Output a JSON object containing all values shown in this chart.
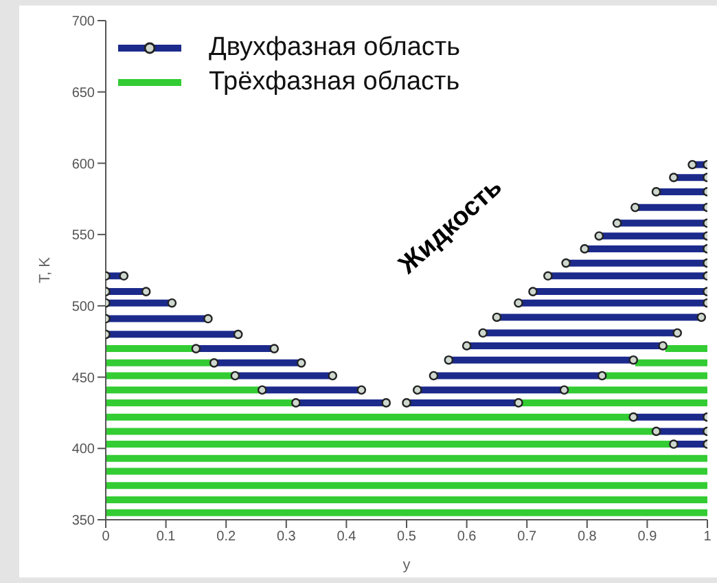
{
  "chart_data": {
    "type": "line",
    "xlabel": "y",
    "ylabel": "T, K",
    "xlim": [
      0,
      1
    ],
    "xticks": [
      0,
      0.1,
      0.2,
      0.3,
      0.4,
      0.5,
      0.6,
      0.7,
      0.8,
      0.9,
      1
    ],
    "ylim": [
      350,
      700
    ],
    "yticks": [
      350,
      400,
      450,
      500,
      550,
      600,
      650,
      700
    ],
    "legend": "top left",
    "line_style": "solid",
    "annotations": [
      "Жидкость"
    ],
    "series": [
      {
        "name": "Трёхфазная область",
        "color": "#33cc33",
        "x": [
          0,
          0.15
        ],
        "values": [
          470,
          470
        ]
      },
      {
        "color": "#33cc33",
        "x": [
          0.93,
          1
        ],
        "values": [
          470,
          470
        ]
      },
      {
        "color": "#33cc33",
        "x": [
          0,
          0.18
        ],
        "values": [
          460,
          460
        ]
      },
      {
        "color": "#33cc33",
        "x": [
          0.88,
          1
        ],
        "values": [
          460,
          460
        ]
      },
      {
        "color": "#33cc33",
        "x": [
          0,
          0.215
        ],
        "values": [
          451,
          451
        ]
      },
      {
        "color": "#33cc33",
        "x": [
          0.825,
          1
        ],
        "values": [
          451,
          451
        ]
      },
      {
        "color": "#33cc33",
        "x": [
          0,
          0.26
        ],
        "values": [
          441,
          441
        ]
      },
      {
        "color": "#33cc33",
        "x": [
          0.76,
          1
        ],
        "values": [
          441,
          441
        ]
      },
      {
        "color": "#33cc33",
        "x": [
          0,
          0.316
        ],
        "values": [
          432,
          432
        ]
      },
      {
        "color": "#33cc33",
        "x": [
          0.686,
          1
        ],
        "values": [
          432,
          432
        ]
      },
      {
        "color": "#33cc33",
        "x": [
          0,
          0.877
        ],
        "values": [
          422,
          422
        ]
      },
      {
        "color": "#33cc33",
        "x": [
          0,
          0.915
        ],
        "values": [
          412,
          412
        ]
      },
      {
        "color": "#33cc33",
        "x": [
          0,
          0.944
        ],
        "values": [
          403,
          403
        ]
      },
      {
        "color": "#33cc33",
        "x": [
          0,
          1
        ],
        "values": [
          393,
          393
        ]
      },
      {
        "color": "#33cc33",
        "x": [
          0,
          1
        ],
        "values": [
          384,
          384
        ]
      },
      {
        "color": "#33cc33",
        "x": [
          0,
          1
        ],
        "values": [
          374,
          374
        ]
      },
      {
        "color": "#33cc33",
        "x": [
          0,
          1
        ],
        "values": [
          364,
          364
        ]
      },
      {
        "color": "#33cc33",
        "x": [
          0,
          1
        ],
        "values": [
          355,
          355
        ]
      },
      {
        "name": "Двухфазная область",
        "color": "#1c2a8c",
        "marker": "circle",
        "x": [
          0,
          0.03
        ],
        "values": [
          521,
          521
        ]
      },
      {
        "color": "#1c2a8c",
        "marker": "circle",
        "x": [
          0,
          0.067
        ],
        "values": [
          510,
          510
        ]
      },
      {
        "color": "#1c2a8c",
        "marker": "circle",
        "x": [
          0,
          0.11
        ],
        "values": [
          502,
          502
        ]
      },
      {
        "color": "#1c2a8c",
        "marker": "circle",
        "x": [
          0,
          0.17
        ],
        "values": [
          491,
          491
        ]
      },
      {
        "color": "#1c2a8c",
        "marker": "circle",
        "x": [
          0,
          0.22
        ],
        "values": [
          480,
          480
        ]
      },
      {
        "color": "#1c2a8c",
        "marker": "circle",
        "x": [
          0.15,
          0.28
        ],
        "values": [
          470,
          470
        ]
      },
      {
        "color": "#1c2a8c",
        "marker": "circle",
        "x": [
          0.18,
          0.325
        ],
        "values": [
          460,
          460
        ]
      },
      {
        "color": "#1c2a8c",
        "marker": "circle",
        "x": [
          0.215,
          0.377
        ],
        "values": [
          451,
          451
        ]
      },
      {
        "color": "#1c2a8c",
        "marker": "circle",
        "x": [
          0.26,
          0.425
        ],
        "values": [
          441,
          441
        ]
      },
      {
        "color": "#1c2a8c",
        "marker": "circle",
        "x": [
          0.316,
          0.466
        ],
        "values": [
          432,
          432
        ]
      },
      {
        "color": "#1c2a8c",
        "marker": "circle",
        "x": [
          0.5,
          0.686
        ],
        "values": [
          432,
          432
        ]
      },
      {
        "color": "#1c2a8c",
        "marker": "circle",
        "x": [
          0.518,
          0.762
        ],
        "values": [
          441,
          441
        ]
      },
      {
        "color": "#1c2a8c",
        "marker": "circle",
        "x": [
          0.545,
          0.825
        ],
        "values": [
          451,
          451
        ]
      },
      {
        "color": "#1c2a8c",
        "marker": "circle",
        "x": [
          0.57,
          0.877
        ],
        "values": [
          462,
          462
        ]
      },
      {
        "color": "#1c2a8c",
        "marker": "circle",
        "x": [
          0.6,
          0.926
        ],
        "values": [
          472,
          472
        ]
      },
      {
        "color": "#1c2a8c",
        "marker": "circle",
        "x": [
          0.627,
          0.95
        ],
        "values": [
          481,
          481
        ]
      },
      {
        "color": "#1c2a8c",
        "marker": "circle",
        "x": [
          0.65,
          0.99
        ],
        "values": [
          492,
          492
        ]
      },
      {
        "color": "#1c2a8c",
        "marker": "circle",
        "x": [
          0.686,
          1
        ],
        "values": [
          502,
          502
        ]
      },
      {
        "color": "#1c2a8c",
        "marker": "circle",
        "x": [
          0.71,
          1
        ],
        "values": [
          510,
          510
        ]
      },
      {
        "color": "#1c2a8c",
        "marker": "circle",
        "x": [
          0.735,
          1
        ],
        "values": [
          521,
          521
        ]
      },
      {
        "color": "#1c2a8c",
        "marker": "circle",
        "x": [
          0.765,
          1
        ],
        "values": [
          530,
          530
        ]
      },
      {
        "color": "#1c2a8c",
        "marker": "circle",
        "x": [
          0.796,
          1
        ],
        "values": [
          540,
          540
        ]
      },
      {
        "color": "#1c2a8c",
        "marker": "circle",
        "x": [
          0.82,
          1
        ],
        "values": [
          549,
          549
        ]
      },
      {
        "color": "#1c2a8c",
        "marker": "circle",
        "x": [
          0.85,
          1
        ],
        "values": [
          558,
          558
        ]
      },
      {
        "color": "#1c2a8c",
        "marker": "circle",
        "x": [
          0.88,
          1
        ],
        "values": [
          569,
          569
        ]
      },
      {
        "color": "#1c2a8c",
        "marker": "circle",
        "x": [
          0.915,
          1
        ],
        "values": [
          580,
          580
        ]
      },
      {
        "color": "#1c2a8c",
        "marker": "circle",
        "x": [
          0.944,
          1
        ],
        "values": [
          590,
          590
        ]
      },
      {
        "color": "#1c2a8c",
        "marker": "circle",
        "x": [
          0.975,
          1
        ],
        "values": [
          599,
          599
        ]
      },
      {
        "color": "#1c2a8c",
        "marker": "circle",
        "x": [
          0.877,
          1
        ],
        "values": [
          422,
          422
        ]
      },
      {
        "color": "#1c2a8c",
        "marker": "circle",
        "x": [
          0.915,
          1
        ],
        "values": [
          412,
          412
        ]
      },
      {
        "color": "#1c2a8c",
        "marker": "circle",
        "x": [
          0.944,
          1
        ],
        "values": [
          403,
          403
        ]
      }
    ]
  }
}
